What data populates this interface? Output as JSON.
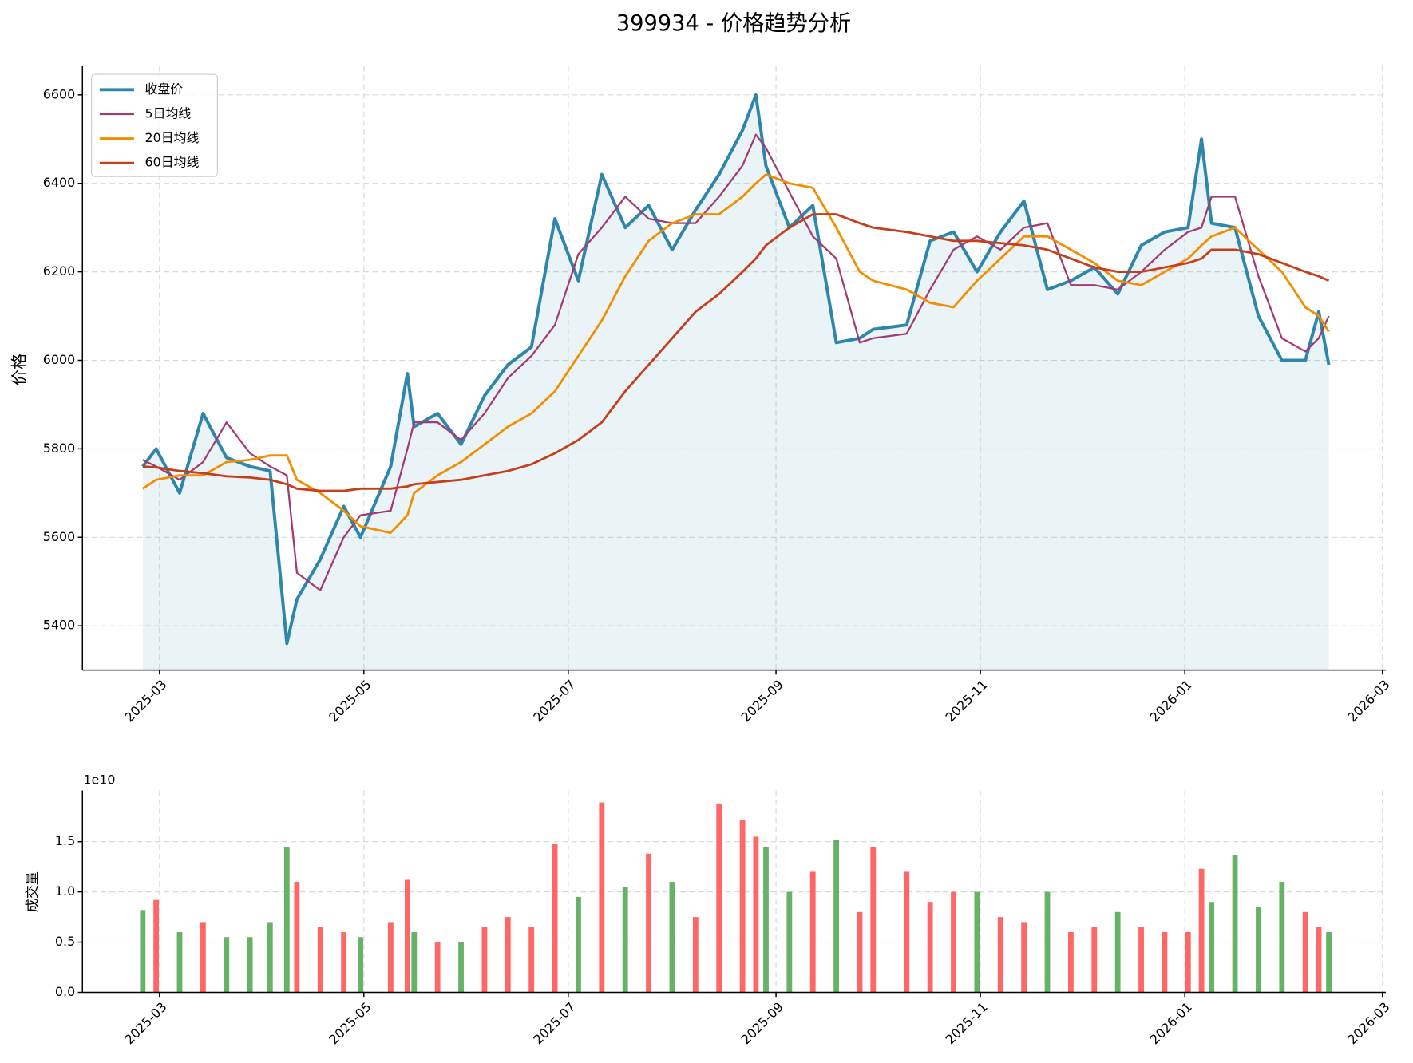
{
  "chart_data": [
    {
      "type": "line",
      "title": "399934 - 价格趋势分析",
      "ylabel": "价格",
      "x": [
        "2025-02-24",
        "2025-02-28",
        "2025-03-07",
        "2025-03-14",
        "2025-03-21",
        "2025-03-28",
        "2025-04-03",
        "2025-04-08",
        "2025-04-11",
        "2025-04-18",
        "2025-04-25",
        "2025-04-30",
        "2025-05-09",
        "2025-05-14",
        "2025-05-16",
        "2025-05-23",
        "2025-05-30",
        "2025-06-06",
        "2025-06-13",
        "2025-06-20",
        "2025-06-27",
        "2025-07-04",
        "2025-07-11",
        "2025-07-18",
        "2025-07-25",
        "2025-08-01",
        "2025-08-08",
        "2025-08-15",
        "2025-08-22",
        "2025-08-26",
        "2025-08-29",
        "2025-09-05",
        "2025-09-12",
        "2025-09-19",
        "2025-09-26",
        "2025-09-30",
        "2025-10-10",
        "2025-10-17",
        "2025-10-24",
        "2025-10-31",
        "2025-11-07",
        "2025-11-14",
        "2025-11-21",
        "2025-11-28",
        "2025-12-05",
        "2025-12-12",
        "2025-12-19",
        "2025-12-26",
        "2026-01-02",
        "2026-01-06",
        "2026-01-09",
        "2026-01-16",
        "2026-01-23",
        "2026-01-30",
        "2026-02-06",
        "2026-02-10",
        "2026-02-13"
      ],
      "series": [
        {
          "name": "收盘价",
          "color": "#2e86ab",
          "fill": "#2e86ab",
          "values": [
            5760,
            5800,
            5700,
            5880,
            5780,
            5760,
            5750,
            5360,
            5460,
            5550,
            5670,
            5600,
            5760,
            5970,
            5850,
            5880,
            5810,
            5920,
            5990,
            6030,
            6320,
            6180,
            6420,
            6300,
            6350,
            6250,
            6340,
            6420,
            6520,
            6600,
            6440,
            6300,
            6350,
            6040,
            6050,
            6070,
            6080,
            6270,
            6290,
            6200,
            6290,
            6360,
            6160,
            6180,
            6210,
            6150,
            6260,
            6290,
            6300,
            6500,
            6310,
            6300,
            6100,
            6000,
            6000,
            6110,
            5990
          ]
        },
        {
          "name": "5日均线",
          "color": "#a23b72",
          "values": [
            5775,
            5760,
            5730,
            5770,
            5860,
            5790,
            5760,
            5740,
            5520,
            5480,
            5600,
            5650,
            5660,
            5800,
            5860,
            5860,
            5820,
            5880,
            5960,
            6010,
            6080,
            6240,
            6300,
            6370,
            6320,
            6310,
            6310,
            6370,
            6440,
            6510,
            6480,
            6380,
            6280,
            6230,
            6040,
            6050,
            6060,
            6160,
            6250,
            6280,
            6250,
            6300,
            6310,
            6170,
            6170,
            6160,
            6200,
            6250,
            6290,
            6300,
            6370,
            6370,
            6190,
            6050,
            6020,
            6050,
            6100
          ]
        },
        {
          "name": "20日均线",
          "color": "#f18f01",
          "values": [
            5710,
            5730,
            5740,
            5740,
            5770,
            5775,
            5785,
            5785,
            5730,
            5700,
            5660,
            5625,
            5610,
            5650,
            5700,
            5740,
            5770,
            5810,
            5850,
            5880,
            5930,
            6010,
            6090,
            6190,
            6270,
            6310,
            6330,
            6330,
            6370,
            6400,
            6420,
            6400,
            6390,
            6300,
            6200,
            6180,
            6160,
            6130,
            6120,
            6180,
            6230,
            6280,
            6280,
            6250,
            6220,
            6180,
            6170,
            6200,
            6230,
            6260,
            6280,
            6300,
            6250,
            6200,
            6120,
            6100,
            6065
          ]
        },
        {
          "name": "60日均线",
          "color": "#c73e1d",
          "values": [
            5760,
            5758,
            5750,
            5745,
            5738,
            5735,
            5730,
            5720,
            5710,
            5705,
            5705,
            5710,
            5710,
            5715,
            5720,
            5725,
            5730,
            5740,
            5750,
            5765,
            5790,
            5820,
            5860,
            5930,
            5990,
            6050,
            6110,
            6150,
            6200,
            6230,
            6260,
            6300,
            6330,
            6330,
            6310,
            6300,
            6290,
            6280,
            6270,
            6270,
            6265,
            6260,
            6250,
            6230,
            6210,
            6200,
            6200,
            6210,
            6220,
            6230,
            6250,
            6250,
            6240,
            6220,
            6200,
            6190,
            6180
          ]
        }
      ],
      "xlim": [
        "2025-02-06",
        "2026-03-02"
      ],
      "xticks": [
        {
          "value": "2025-03-01",
          "label": "2025-03"
        },
        {
          "value": "2025-05-01",
          "label": "2025-05"
        },
        {
          "value": "2025-07-01",
          "label": "2025-07"
        },
        {
          "value": "2025-09-01",
          "label": "2025-09"
        },
        {
          "value": "2025-11-01",
          "label": "2025-11"
        },
        {
          "value": "2026-01-01",
          "label": "2026-01"
        },
        {
          "value": "2026-03-01",
          "label": "2026-03"
        }
      ],
      "ylim": [
        5300,
        6665
      ],
      "yticks": [
        5400,
        5600,
        5800,
        6000,
        6200,
        6400,
        6600
      ],
      "grid": true,
      "legend": "upper left"
    },
    {
      "type": "bar",
      "ylabel": "成交量",
      "y_offset_label": "1e10",
      "up_color": "#ff5555",
      "down_color": "#55aa55",
      "x": [
        "2025-02-24",
        "2025-02-28",
        "2025-03-07",
        "2025-03-14",
        "2025-03-21",
        "2025-03-28",
        "2025-04-03",
        "2025-04-08",
        "2025-04-11",
        "2025-04-18",
        "2025-04-25",
        "2025-04-30",
        "2025-05-09",
        "2025-05-14",
        "2025-05-16",
        "2025-05-23",
        "2025-05-30",
        "2025-06-06",
        "2025-06-13",
        "2025-06-20",
        "2025-06-27",
        "2025-07-04",
        "2025-07-11",
        "2025-07-18",
        "2025-07-25",
        "2025-08-01",
        "2025-08-08",
        "2025-08-15",
        "2025-08-22",
        "2025-08-26",
        "2025-08-29",
        "2025-09-05",
        "2025-09-12",
        "2025-09-19",
        "2025-09-26",
        "2025-09-30",
        "2025-10-10",
        "2025-10-17",
        "2025-10-24",
        "2025-10-31",
        "2025-11-07",
        "2025-11-14",
        "2025-11-21",
        "2025-11-28",
        "2025-12-05",
        "2025-12-12",
        "2025-12-19",
        "2025-12-26",
        "2026-01-02",
        "2026-01-06",
        "2026-01-09",
        "2026-01-16",
        "2026-01-23",
        "2026-01-30",
        "2026-02-06",
        "2026-02-10",
        "2026-02-13"
      ],
      "values": [
        0.82,
        0.92,
        0.6,
        0.7,
        0.55,
        0.55,
        0.7,
        1.45,
        1.1,
        0.65,
        0.6,
        0.55,
        0.7,
        1.12,
        0.6,
        0.5,
        0.5,
        0.65,
        0.75,
        0.65,
        1.48,
        0.95,
        1.89,
        1.05,
        1.38,
        1.1,
        0.75,
        1.88,
        1.72,
        1.55,
        1.45,
        1.0,
        1.2,
        1.52,
        0.8,
        1.45,
        1.2,
        0.9,
        1.0,
        1.0,
        0.75,
        0.7,
        1.0,
        0.6,
        0.65,
        0.8,
        0.65,
        0.6,
        0.6,
        1.23,
        0.9,
        1.37,
        0.85,
        1.1,
        0.8,
        0.65,
        0.6
      ],
      "xlim": [
        "2025-02-06",
        "2026-03-02"
      ],
      "xticks": [
        {
          "value": "2025-03-01",
          "label": "2025-03"
        },
        {
          "value": "2025-05-01",
          "label": "2025-05"
        },
        {
          "value": "2025-07-01",
          "label": "2025-07"
        },
        {
          "value": "2025-09-01",
          "label": "2025-09"
        },
        {
          "value": "2025-11-01",
          "label": "2025-11"
        },
        {
          "value": "2026-01-01",
          "label": "2026-01"
        },
        {
          "value": "2026-03-01",
          "label": "2026-03"
        }
      ],
      "ylim": [
        0,
        2.01
      ],
      "yticks": [
        {
          "value": 0,
          "label": "0.0"
        },
        {
          "value": 0.5,
          "label": "0.5"
        },
        {
          "value": 1,
          "label": "1.0"
        },
        {
          "value": 1.5,
          "label": "1.5"
        }
      ],
      "grid": true
    }
  ]
}
